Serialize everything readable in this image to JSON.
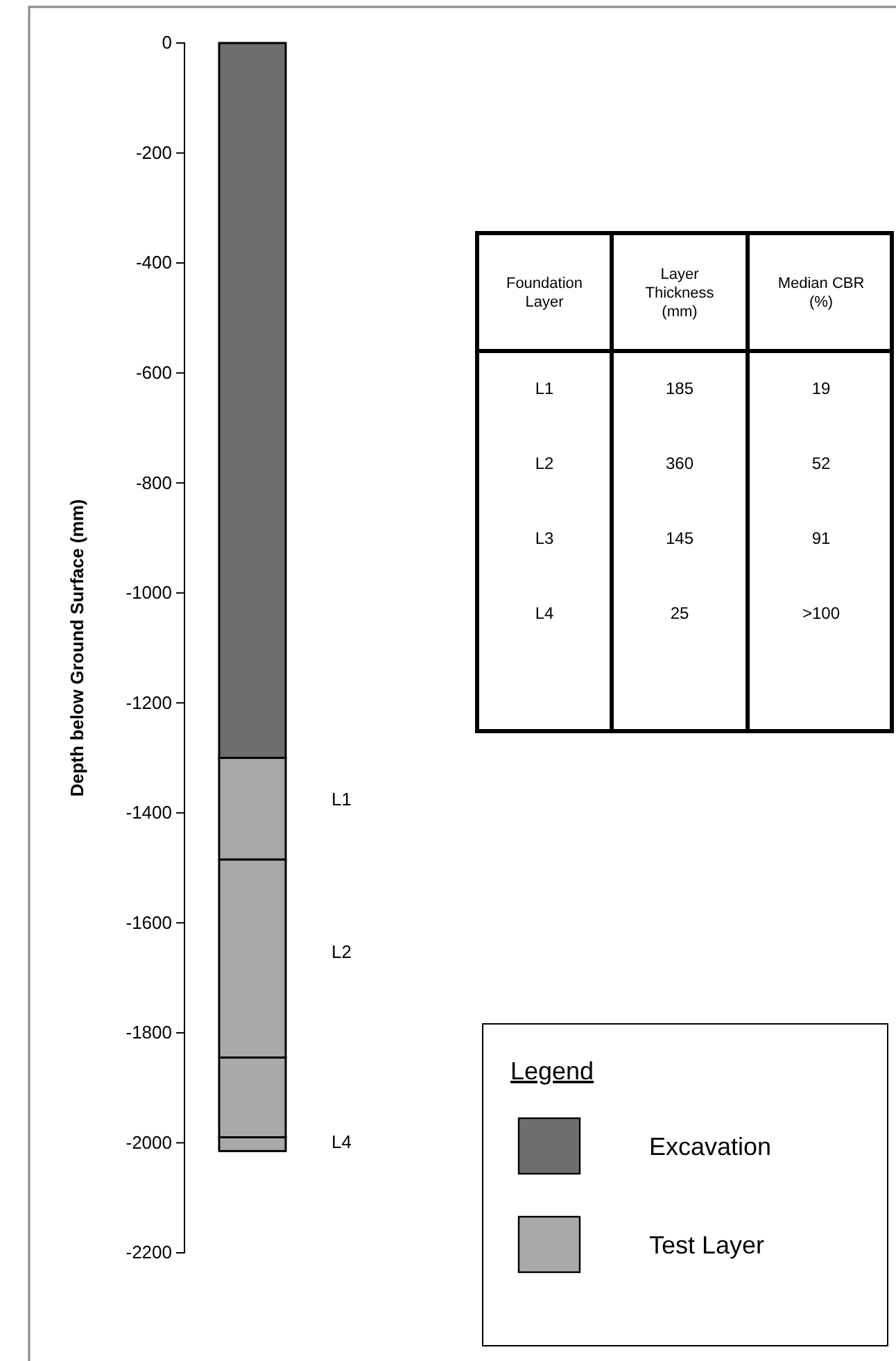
{
  "chart_data": {
    "type": "bar",
    "stacked": true,
    "ylabel": "Depth below Ground Surface (mm)",
    "categories": [
      null
    ],
    "series": [
      {
        "name": "Excavation",
        "color": "#6e6e6e",
        "values": [
          -1300
        ]
      },
      {
        "name": "Test Layer",
        "color": "#a9a9a9",
        "values": [
          -185
        ]
      },
      {
        "color": "#a9a9a9",
        "values": [
          -360
        ]
      },
      {
        "color": "#a9a9a9",
        "values": [
          -145
        ]
      },
      {
        "color": "#a9a9a9",
        "values": [
          -25
        ]
      }
    ],
    "ylim": [
      -2200,
      0
    ],
    "yticks": [
      0,
      -200,
      -400,
      -600,
      -800,
      -1000,
      -1200,
      -1400,
      -1600,
      -1800,
      -2000,
      -2200
    ],
    "tick_labels": "y",
    "legend": "bottom right",
    "legend_title": "Legend",
    "annotations": [
      "L1",
      "L2",
      "L4",
      "Foundation Layer",
      "Layer Thickness (mm)",
      "Median CBR (%)",
      "L1",
      "185",
      "19",
      "L2",
      "360",
      "52",
      "L3",
      "145",
      "91",
      "L4",
      "25",
      ">100"
    ]
  }
}
